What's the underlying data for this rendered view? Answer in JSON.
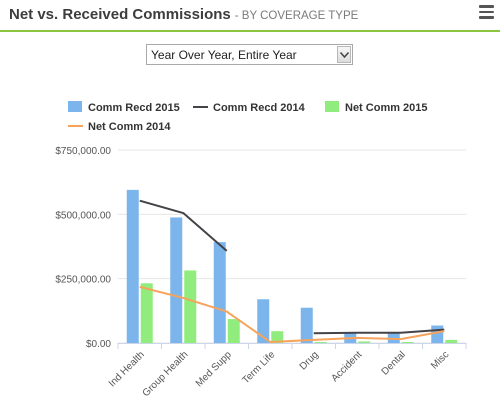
{
  "header": {
    "title": "Net vs. Received Commissions",
    "subtitle": "- BY COVERAGE TYPE",
    "menu_icon": "hamburger-menu-icon"
  },
  "period_select": {
    "value": "Year Over Year, Entire Year"
  },
  "colors": {
    "accent_line": "#8cc63f",
    "comm_recd_2015": "#7cb5ec",
    "comm_recd_2014": "#434348",
    "net_comm_2015": "#90ed7d",
    "net_comm_2014": "#f7a35c"
  },
  "chart_data": {
    "type": "bar",
    "categories": [
      "Ind Health",
      "Group Health",
      "Med Supp",
      "Term Life",
      "Drug",
      "Accident",
      "Dental",
      "Misc"
    ],
    "y_ticks": [
      "$0.00",
      "$250,000.00",
      "$500,000.00",
      "$750,000.00"
    ],
    "ylim": [
      0,
      750000
    ],
    "grid": true,
    "legend_position": "top",
    "series": [
      {
        "name": "Comm Recd 2015",
        "kind": "column",
        "color": "#7cb5ec",
        "values": [
          595000,
          488000,
          392000,
          170000,
          137000,
          40000,
          40000,
          68000
        ]
      },
      {
        "name": "Comm Recd 2014",
        "kind": "line",
        "color": "#434348",
        "values": [
          553000,
          505000,
          358000,
          null,
          38000,
          40000,
          40000,
          52000
        ]
      },
      {
        "name": "Net Comm 2015",
        "kind": "column",
        "color": "#90ed7d",
        "values": [
          232000,
          282000,
          93000,
          46000,
          4000,
          6000,
          4000,
          12000
        ]
      },
      {
        "name": "Net Comm 2014",
        "kind": "line",
        "color": "#f7a35c",
        "values": [
          218000,
          175000,
          122000,
          4000,
          12000,
          20000,
          15000,
          46000
        ]
      }
    ]
  }
}
